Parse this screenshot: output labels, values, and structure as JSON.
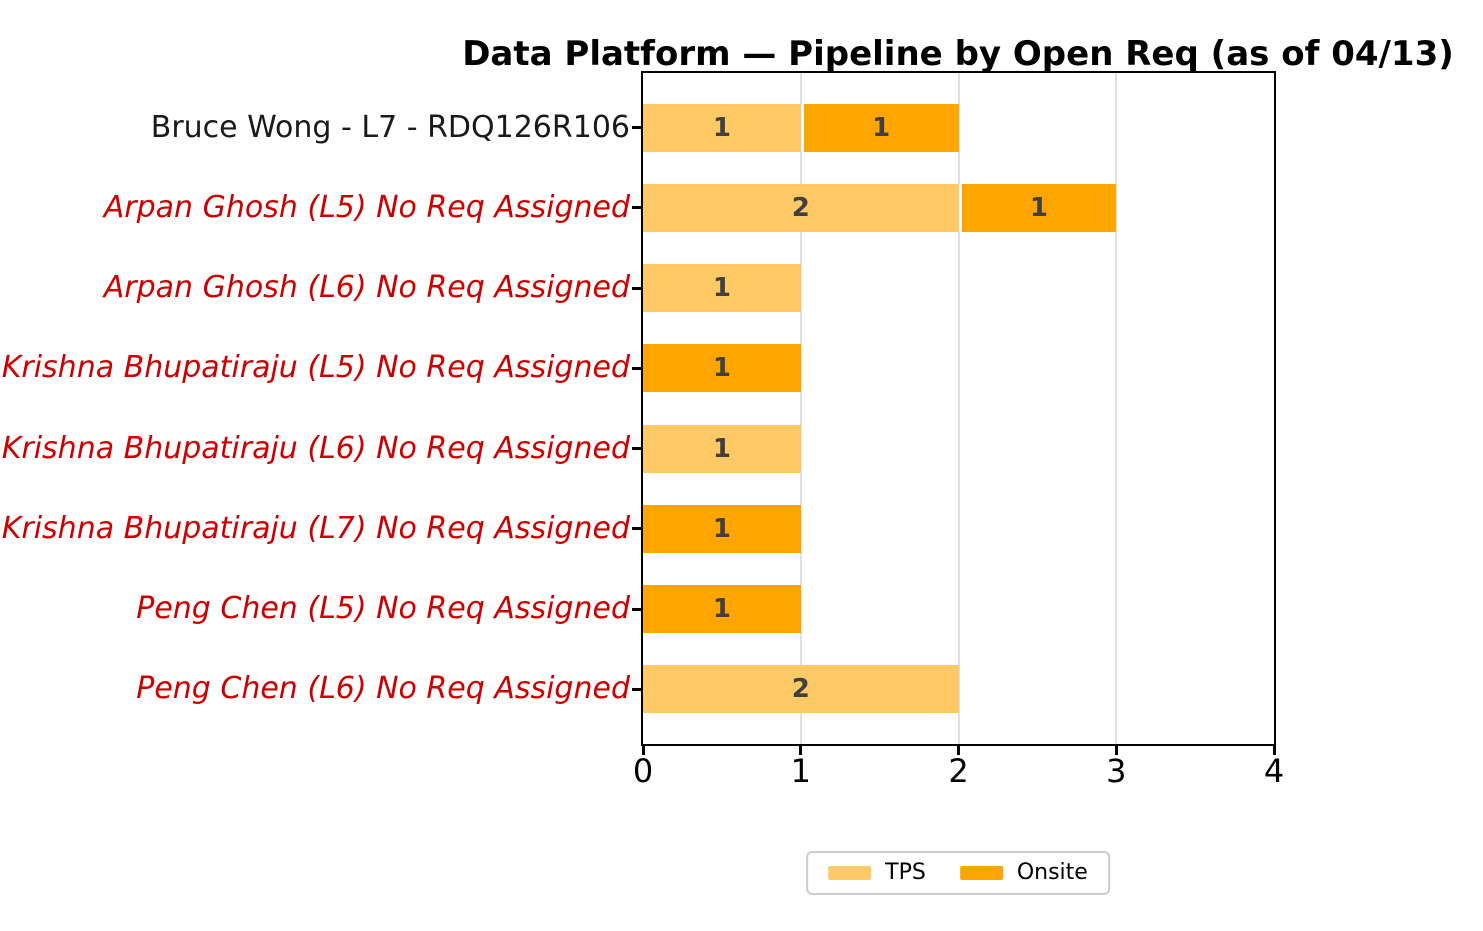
{
  "chart_data": {
    "type": "bar",
    "orientation": "horizontal",
    "stacked": true,
    "title": "Data Platform — Pipeline by Open Req (as of 04/13)",
    "categories": [
      {
        "label": "Bruce Wong - L7 - RDQ126R106",
        "flagged": false
      },
      {
        "label": "Arpan Ghosh (L5) No Req Assigned",
        "flagged": true
      },
      {
        "label": "Arpan Ghosh (L6) No Req Assigned",
        "flagged": true
      },
      {
        "label": "Krishna Bhupatiraju (L5) No Req Assigned",
        "flagged": true
      },
      {
        "label": "Krishna Bhupatiraju (L6) No Req Assigned",
        "flagged": true
      },
      {
        "label": "Krishna Bhupatiraju (L7) No Req Assigned",
        "flagged": true
      },
      {
        "label": "Peng Chen (L5) No Req Assigned",
        "flagged": true
      },
      {
        "label": "Peng Chen (L6) No Req Assigned",
        "flagged": true
      }
    ],
    "series": [
      {
        "name": "TPS",
        "color": "#FFC966",
        "values": [
          1,
          2,
          1,
          0,
          1,
          0,
          0,
          2
        ]
      },
      {
        "name": "Onsite",
        "color": "#FFA500",
        "values": [
          1,
          1,
          0,
          1,
          0,
          1,
          1,
          0
        ]
      }
    ],
    "xlim": [
      0,
      4
    ],
    "xticks": [
      0,
      1,
      2,
      3,
      4
    ],
    "grid": "vertical",
    "legend_position": "bottom-center",
    "colors": {
      "bar_value_label": "#404040",
      "category_label_normal": "#1a1a1a",
      "category_label_flagged": "#cc0000",
      "grid_line": "#e0e0e0",
      "spine": "#000000"
    }
  }
}
